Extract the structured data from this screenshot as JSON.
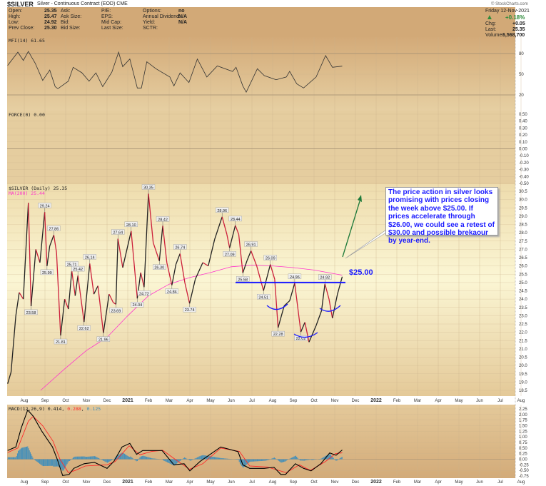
{
  "header": {
    "symbol": "$SILVER",
    "description": "Silver - Continuous Contract (EOD) CME",
    "watermark": "© StockCharts.com",
    "fields": [
      {
        "label": "Open:",
        "value": "25.35"
      },
      {
        "label": "High:",
        "value": "25.47"
      },
      {
        "label": "Low:",
        "value": "24.92"
      },
      {
        "label": "Prev Close:",
        "value": "25.30"
      },
      {
        "label": "Ask:",
        "value": ""
      },
      {
        "label": "Ask Size:",
        "value": ""
      },
      {
        "label": "Bid:",
        "value": ""
      },
      {
        "label": "Bid Size:",
        "value": ""
      },
      {
        "label": "P/E:",
        "value": ""
      },
      {
        "label": "EPS:",
        "value": ""
      },
      {
        "label": "Mid Cap:",
        "value": ""
      },
      {
        "label": "Last Size:",
        "value": ""
      },
      {
        "label": "Options:",
        "value": "no"
      },
      {
        "label": "Annual Dividend:",
        "value": "N/A"
      },
      {
        "label": "Yield:",
        "value": "N/A"
      },
      {
        "label": "SCTR:",
        "value": ""
      }
    ],
    "date": "Friday  12-Nov-2021",
    "pct_change": "+0.18%",
    "chg_label": "Chg:",
    "chg": "+0.05",
    "last_label": "Last:",
    "last": "25.35",
    "volume_label": "Volume:",
    "volume": "6,568,700",
    "up_color": "#2e8b3a"
  },
  "annotation": {
    "callout": "The price action in silver looks promising with prices closing the week above $25.00. If prices accelerate through $26.00, we could see a retest of $30.00 and possible brekaour by year-end.",
    "level_label": "$25.00",
    "level": 25.0,
    "level_color": "#1a1aff",
    "arrow_color": "#1e7a3a"
  },
  "chart_data": [
    {
      "type": "line",
      "panel": "MFI",
      "legend": "MFI(14) 61.65",
      "ylim": [
        0,
        100
      ],
      "ticks": [
        80,
        50,
        20
      ],
      "ref_lines": [
        80,
        20
      ],
      "points": [
        [
          "2020-07-07",
          62.7
        ],
        [
          "2020-07-22",
          82
        ],
        [
          "2020-07-30",
          70
        ],
        [
          "2020-08-07",
          83
        ],
        [
          "2020-08-17",
          66
        ],
        [
          "2020-08-28",
          41
        ],
        [
          "2020-09-08",
          56
        ],
        [
          "2020-09-16",
          32
        ],
        [
          "2020-09-20",
          29
        ],
        [
          "2020-10-05",
          40
        ],
        [
          "2020-10-12",
          60
        ],
        [
          "2020-10-25",
          52
        ],
        [
          "2020-11-05",
          40
        ],
        [
          "2020-11-15",
          52
        ],
        [
          "2020-11-25",
          32
        ],
        [
          "2020-12-08",
          53
        ],
        [
          "2020-12-18",
          82
        ],
        [
          "2020-12-24",
          61
        ],
        [
          "2021-01-04",
          72
        ],
        [
          "2021-01-15",
          30
        ],
        [
          "2021-01-21",
          30
        ],
        [
          "2021-01-29",
          68
        ],
        [
          "2021-02-12",
          58
        ],
        [
          "2021-03-02",
          46
        ],
        [
          "2021-03-08",
          33
        ],
        [
          "2021-03-17",
          52
        ],
        [
          "2021-03-30",
          38
        ],
        [
          "2021-04-12",
          72
        ],
        [
          "2021-04-26",
          46
        ],
        [
          "2021-05-11",
          62
        ],
        [
          "2021-06-03",
          54
        ],
        [
          "2021-06-08",
          60
        ],
        [
          "2021-06-18",
          33
        ],
        [
          "2021-06-23",
          24
        ],
        [
          "2021-07-09",
          58
        ],
        [
          "2021-07-19",
          48
        ],
        [
          "2021-08-06",
          42
        ],
        [
          "2021-08-21",
          46
        ],
        [
          "2021-08-26",
          54
        ],
        [
          "2021-09-06",
          36
        ],
        [
          "2021-09-16",
          30
        ],
        [
          "2021-10-04",
          46
        ],
        [
          "2021-10-18",
          77
        ],
        [
          "2021-10-28",
          60
        ],
        [
          "2021-11-12",
          61.65
        ]
      ]
    },
    {
      "type": "line",
      "panel": "FORCE",
      "legend": "FORCE(0) 0.00",
      "ylim": [
        -0.5,
        0.5
      ],
      "ticks": [
        0.5,
        0.4,
        0.3,
        0.2,
        0.1,
        0.0,
        -0.1,
        -0.2,
        -0.3,
        -0.4,
        -0.5
      ],
      "points": []
    },
    {
      "type": "line",
      "panel": "Price",
      "legend": "$SILVER (Daily) 25.35",
      "ma_legend": "MA(200) 25.44",
      "ma_color": "#ff33cc",
      "price_color": "#cc1f3a",
      "ylim": [
        18.5,
        30.5
      ],
      "ticks": [
        30.5,
        30.0,
        29.5,
        29.0,
        28.5,
        28.0,
        27.5,
        27.0,
        26.5,
        26.0,
        25.5,
        25.0,
        24.5,
        24.0,
        23.5,
        23.0,
        22.5,
        22.0,
        21.5,
        21.0,
        20.5,
        20.0,
        19.5,
        19.0,
        18.5
      ],
      "points": [
        [
          "2020-07-07",
          18.9
        ],
        [
          "2020-07-12",
          19.6
        ],
        [
          "2020-07-19",
          23.0
        ],
        [
          "2020-07-24",
          24.4
        ],
        [
          "2020-07-30",
          24.0
        ],
        [
          "2020-08-07",
          29.8
        ],
        [
          "2020-08-11",
          23.58
        ],
        [
          "2020-08-18",
          27.0
        ],
        [
          "2020-08-24",
          26.2
        ],
        [
          "2020-08-31",
          29.24
        ],
        [
          "2020-09-04",
          25.99
        ],
        [
          "2020-09-08",
          27.2
        ],
        [
          "2020-09-14",
          27.86
        ],
        [
          "2020-09-18",
          26.8
        ],
        [
          "2020-09-24",
          21.81
        ],
        [
          "2020-09-30",
          24.0
        ],
        [
          "2020-10-05",
          23.4
        ],
        [
          "2020-10-10",
          25.71
        ],
        [
          "2020-10-15",
          24.2
        ],
        [
          "2020-10-19",
          25.42
        ],
        [
          "2020-10-28",
          22.62
        ],
        [
          "2020-11-06",
          26.14
        ],
        [
          "2020-11-12",
          24.3
        ],
        [
          "2020-11-18",
          24.8
        ],
        [
          "2020-11-26",
          21.96
        ],
        [
          "2020-12-04",
          24.3
        ],
        [
          "2020-12-10",
          23.8
        ],
        [
          "2020-12-14",
          23.69
        ],
        [
          "2020-12-17",
          27.64
        ],
        [
          "2020-12-24",
          25.9
        ],
        [
          "2021-01-06",
          28.1
        ],
        [
          "2021-01-15",
          24.04
        ],
        [
          "2021-01-20",
          25.6
        ],
        [
          "2021-01-25",
          24.72
        ],
        [
          "2021-02-01",
          30.35
        ],
        [
          "2021-02-08",
          27.4
        ],
        [
          "2021-02-17",
          26.3
        ],
        [
          "2021-02-22",
          28.42
        ],
        [
          "2021-02-28",
          26.2
        ],
        [
          "2021-03-05",
          24.84
        ],
        [
          "2021-03-11",
          26.1
        ],
        [
          "2021-03-17",
          26.74
        ],
        [
          "2021-03-24",
          25.0
        ],
        [
          "2021-03-31",
          23.74
        ],
        [
          "2021-04-09",
          25.2
        ],
        [
          "2021-04-20",
          26.2
        ],
        [
          "2021-04-28",
          26.0
        ],
        [
          "2021-05-07",
          27.6
        ],
        [
          "2021-05-18",
          28.96
        ],
        [
          "2021-05-25",
          27.9
        ],
        [
          "2021-05-29",
          27.09
        ],
        [
          "2021-06-07",
          28.44
        ],
        [
          "2021-06-12",
          27.9
        ],
        [
          "2021-06-18",
          25.58
        ],
        [
          "2021-06-24",
          26.3
        ],
        [
          "2021-06-30",
          26.91
        ],
        [
          "2021-07-08",
          26.0
        ],
        [
          "2021-07-18",
          24.51
        ],
        [
          "2021-07-28",
          26.09
        ],
        [
          "2021-08-04",
          25.2
        ],
        [
          "2021-08-09",
          22.28
        ],
        [
          "2021-08-18",
          23.6
        ],
        [
          "2021-08-26",
          23.9
        ],
        [
          "2021-09-03",
          24.96
        ],
        [
          "2021-09-12",
          22.02
        ],
        [
          "2021-09-18",
          22.6
        ],
        [
          "2021-09-24",
          21.41
        ],
        [
          "2021-10-04",
          22.4
        ],
        [
          "2021-10-12",
          23.3
        ],
        [
          "2021-10-17",
          24.92
        ],
        [
          "2021-10-23",
          24.0
        ],
        [
          "2021-10-28",
          22.85
        ],
        [
          "2021-11-05",
          24.3
        ],
        [
          "2021-11-12",
          25.35
        ]
      ],
      "ma_points": [
        [
          "2020-08-25",
          18.5
        ],
        [
          "2020-09-30",
          19.8
        ],
        [
          "2020-11-01",
          20.9
        ],
        [
          "2020-12-01",
          21.7
        ],
        [
          "2021-01-01",
          23.0
        ],
        [
          "2021-02-01",
          24.2
        ],
        [
          "2021-03-01",
          24.9
        ],
        [
          "2021-04-01",
          25.3
        ],
        [
          "2021-05-01",
          25.6
        ],
        [
          "2021-06-01",
          25.95
        ],
        [
          "2021-07-01",
          26.05
        ],
        [
          "2021-08-01",
          26.0
        ],
        [
          "2021-09-01",
          25.9
        ],
        [
          "2021-10-01",
          25.75
        ],
        [
          "2021-11-12",
          25.44
        ]
      ],
      "labels": [
        [
          "2020-08-11",
          23.58,
          "below"
        ],
        [
          "2020-08-31",
          29.24,
          "above"
        ],
        [
          "2020-09-04",
          25.99,
          "below"
        ],
        [
          "2020-09-14",
          27.86,
          "above"
        ],
        [
          "2020-09-24",
          21.81,
          "below"
        ],
        [
          "2020-10-10",
          25.71,
          "above"
        ],
        [
          "2020-10-19",
          25.42,
          "above"
        ],
        [
          "2020-10-28",
          22.62,
          "below"
        ],
        [
          "2020-11-06",
          26.14,
          "above"
        ],
        [
          "2020-11-26",
          21.96,
          "below"
        ],
        [
          "2020-12-14",
          23.69,
          "below"
        ],
        [
          "2020-12-17",
          27.64,
          "above"
        ],
        [
          "2021-01-06",
          28.1,
          "above"
        ],
        [
          "2021-01-15",
          24.04,
          "below"
        ],
        [
          "2021-01-25",
          24.72,
          "below"
        ],
        [
          "2021-02-01",
          30.35,
          "above"
        ],
        [
          "2021-02-17",
          26.3,
          "below"
        ],
        [
          "2021-02-22",
          28.42,
          "above"
        ],
        [
          "2021-03-05",
          24.84,
          "below"
        ],
        [
          "2021-03-17",
          26.74,
          "above"
        ],
        [
          "2021-03-31",
          23.74,
          "below"
        ],
        [
          "2021-05-18",
          28.96,
          "above"
        ],
        [
          "2021-05-29",
          27.09,
          "below"
        ],
        [
          "2021-06-07",
          28.44,
          "above"
        ],
        [
          "2021-06-18",
          25.58,
          "below"
        ],
        [
          "2021-06-30",
          26.91,
          "above"
        ],
        [
          "2021-07-18",
          24.51,
          "below"
        ],
        [
          "2021-07-28",
          26.09,
          "above"
        ],
        [
          "2021-08-09",
          22.28,
          "below"
        ],
        [
          "2021-09-03",
          24.96,
          "above"
        ],
        [
          "2021-09-12",
          22.02,
          "below"
        ],
        [
          "2021-10-17",
          24.92,
          "above"
        ]
      ]
    },
    {
      "type": "line",
      "panel": "MACD",
      "legend": "MACD(12,26,9)",
      "legend_values": [
        "0.414",
        "0.288",
        "0.125"
      ],
      "colors": [
        "#000000",
        "#ff2a2a",
        "#3c8dbc"
      ],
      "ylim": [
        -0.75,
        2.25
      ],
      "ticks": [
        2.25,
        2.0,
        1.75,
        1.5,
        1.25,
        1.0,
        0.75,
        0.5,
        0.25,
        0.0,
        -0.25,
        -0.5,
        -0.75
      ],
      "macd": [
        [
          "2020-07-07",
          0.39
        ],
        [
          "2020-07-19",
          0.55
        ],
        [
          "2020-07-27",
          1.4
        ],
        [
          "2020-08-06",
          2.2
        ],
        [
          "2020-08-14",
          1.93
        ],
        [
          "2020-08-27",
          1.24
        ],
        [
          "2020-09-12",
          0.55
        ],
        [
          "2020-09-19",
          0.0
        ],
        [
          "2020-09-27",
          -0.73
        ],
        [
          "2020-10-06",
          -0.68
        ],
        [
          "2020-10-13",
          -0.41
        ],
        [
          "2020-10-28",
          -0.2
        ],
        [
          "2020-11-13",
          -0.14
        ],
        [
          "2020-12-01",
          -0.41
        ],
        [
          "2020-12-11",
          -0.1
        ],
        [
          "2020-12-23",
          0.55
        ],
        [
          "2021-01-04",
          0.71
        ],
        [
          "2021-01-14",
          0.22
        ],
        [
          "2021-01-23",
          0.39
        ],
        [
          "2021-02-21",
          0.39
        ],
        [
          "2021-03-08",
          -0.25
        ],
        [
          "2021-03-23",
          -0.2
        ],
        [
          "2021-04-01",
          -0.52
        ],
        [
          "2021-04-16",
          -0.1
        ],
        [
          "2021-05-16",
          0.55
        ],
        [
          "2021-06-11",
          0.34
        ],
        [
          "2021-06-18",
          -0.25
        ],
        [
          "2021-06-28",
          -0.41
        ],
        [
          "2021-07-19",
          -0.41
        ],
        [
          "2021-08-03",
          -0.36
        ],
        [
          "2021-08-13",
          -0.68
        ],
        [
          "2021-08-20",
          -0.68
        ],
        [
          "2021-09-04",
          -0.2
        ],
        [
          "2021-09-16",
          -0.41
        ],
        [
          "2021-09-27",
          -0.52
        ],
        [
          "2021-10-11",
          -0.2
        ],
        [
          "2021-10-24",
          0.28
        ],
        [
          "2021-11-03",
          0.18
        ],
        [
          "2021-11-12",
          0.414
        ]
      ],
      "signal": [
        [
          "2020-07-07",
          0.3
        ],
        [
          "2020-07-22",
          0.5
        ],
        [
          "2020-08-07",
          1.7
        ],
        [
          "2020-08-14",
          1.92
        ],
        [
          "2020-08-28",
          1.5
        ],
        [
          "2020-09-13",
          0.8
        ],
        [
          "2020-09-23",
          0.0
        ],
        [
          "2020-10-05",
          -0.6
        ],
        [
          "2020-10-15",
          -0.5
        ],
        [
          "2020-10-30",
          -0.3
        ],
        [
          "2020-12-01",
          -0.25
        ],
        [
          "2020-12-13",
          -0.1
        ],
        [
          "2021-01-03",
          0.6
        ],
        [
          "2021-01-19",
          0.2
        ],
        [
          "2021-02-06",
          0.35
        ],
        [
          "2021-02-22",
          0.4
        ],
        [
          "2021-03-12",
          -0.05
        ],
        [
          "2021-03-31",
          -0.45
        ],
        [
          "2021-04-20",
          -0.2
        ],
        [
          "2021-05-16",
          0.5
        ],
        [
          "2021-06-13",
          0.35
        ],
        [
          "2021-06-28",
          -0.3
        ],
        [
          "2021-07-24",
          -0.35
        ],
        [
          "2021-08-21",
          -0.6
        ],
        [
          "2021-09-10",
          -0.25
        ],
        [
          "2021-09-26",
          -0.5
        ],
        [
          "2021-10-18",
          -0.1
        ],
        [
          "2021-11-02",
          0.25
        ],
        [
          "2021-11-12",
          0.288
        ]
      ]
    },
    {
      "type": "axis",
      "months": [
        [
          "2020-08-01",
          "Aug"
        ],
        [
          "2020-09-01",
          "Sep"
        ],
        [
          "2020-10-01",
          "Oct"
        ],
        [
          "2020-11-01",
          "Nov"
        ],
        [
          "2020-12-01",
          "Dec"
        ],
        [
          "2021-01-01",
          "2021"
        ],
        [
          "2021-02-01",
          "Feb"
        ],
        [
          "2021-03-01",
          "Mar"
        ],
        [
          "2021-04-01",
          "Apr"
        ],
        [
          "2021-05-01",
          "May"
        ],
        [
          "2021-06-01",
          "Jun"
        ],
        [
          "2021-07-01",
          "Jul"
        ],
        [
          "2021-08-01",
          "Aug"
        ],
        [
          "2021-09-01",
          "Sep"
        ],
        [
          "2021-10-01",
          "Oct"
        ],
        [
          "2021-11-01",
          "Nov"
        ],
        [
          "2021-12-01",
          "Dec"
        ],
        [
          "2022-01-01",
          "2022"
        ],
        [
          "2022-02-01",
          "Feb"
        ],
        [
          "2022-03-01",
          "Mar"
        ],
        [
          "2022-04-01",
          "Apr"
        ],
        [
          "2022-05-01",
          "May"
        ],
        [
          "2022-06-01",
          "Jun"
        ],
        [
          "2022-07-01",
          "Jul"
        ],
        [
          "2022-08-01",
          "Aug"
        ]
      ]
    }
  ]
}
